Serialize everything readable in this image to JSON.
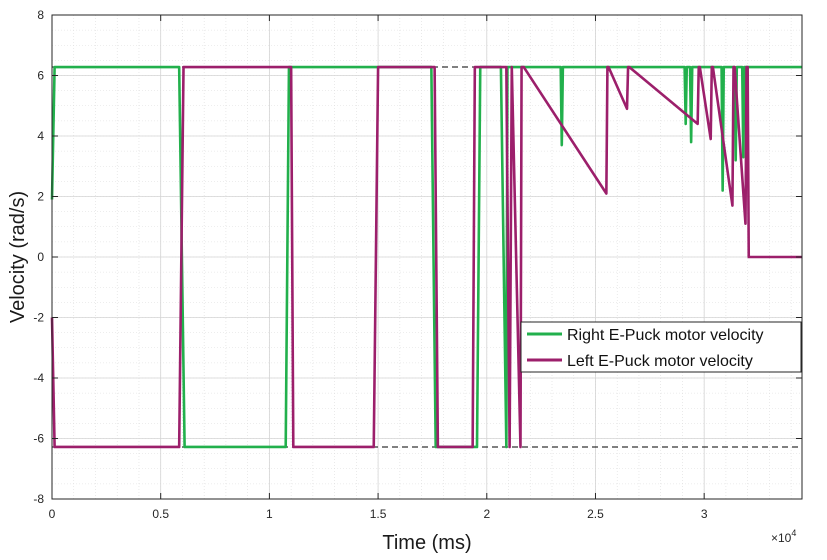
{
  "chart_data": {
    "type": "line",
    "title": "",
    "xlabel": "Time (ms)",
    "ylabel": "Velocity (rad/s)",
    "xlim": [
      0,
      3.45
    ],
    "ylim": [
      -8,
      8
    ],
    "x_exponent_label": "×10",
    "x_exponent_power": "4",
    "x_ticks": [
      0,
      0.5,
      1,
      1.5,
      2,
      2.5,
      3
    ],
    "x_tick_labels": [
      "0",
      "0.5",
      "1",
      "1.5",
      "2",
      "2.5",
      "3"
    ],
    "y_ticks": [
      -8,
      -6,
      -4,
      -2,
      0,
      2,
      4,
      6,
      8
    ],
    "y_tick_labels": [
      "-8",
      "-6",
      "-4",
      "-2",
      "0",
      "2",
      "4",
      "6",
      "8"
    ],
    "grid": true,
    "minor_grid": true,
    "legend_position": "center-right",
    "reference_lines": [
      {
        "name": "upper-limit",
        "y": 6.28,
        "style": "dashed"
      },
      {
        "name": "lower-limit",
        "y": -6.28,
        "style": "dashed"
      }
    ],
    "series": [
      {
        "name": "Right E-Puck motor velocity",
        "color": "#22b04c",
        "x": [
          0,
          0.012,
          0.02,
          0.585,
          0.61,
          0.625,
          1.075,
          1.09,
          1.1,
          1.745,
          1.765,
          1.77,
          1.955,
          1.97,
          1.975,
          2.065,
          2.09,
          2.095,
          2.34,
          2.345,
          2.35,
          2.91,
          2.915,
          2.92,
          2.935,
          2.94,
          2.945,
          3.08,
          3.085,
          3.09,
          3.14,
          3.145,
          3.15,
          3.175,
          3.18,
          3.185,
          3.2,
          3.45
        ],
        "y": [
          1.9,
          6.28,
          6.28,
          6.28,
          -6.28,
          -6.28,
          -6.28,
          6.28,
          6.28,
          6.28,
          -6.28,
          -6.28,
          -6.28,
          6.28,
          6.28,
          6.28,
          -6.28,
          6.28,
          6.28,
          3.7,
          6.28,
          6.28,
          4.4,
          6.28,
          6.28,
          3.8,
          6.28,
          6.28,
          2.2,
          6.28,
          6.28,
          3.2,
          6.28,
          6.28,
          3.3,
          6.28,
          6.28,
          6.28
        ]
      },
      {
        "name": "Left E-Puck motor velocity",
        "color": "#9c1f6b",
        "x": [
          0,
          0.012,
          0.02,
          0.585,
          0.605,
          0.625,
          1.1,
          1.11,
          1.13,
          1.48,
          1.5,
          1.515,
          1.76,
          1.775,
          1.79,
          1.935,
          1.945,
          1.965,
          2.09,
          2.105,
          2.115,
          2.155,
          2.16,
          2.17,
          2.55,
          2.555,
          2.56,
          2.645,
          2.65,
          2.655,
          2.97,
          2.975,
          2.98,
          3.03,
          3.035,
          3.04,
          3.13,
          3.135,
          3.14,
          3.19,
          3.195,
          3.2,
          3.205,
          3.21,
          3.215,
          3.24,
          3.45
        ],
        "y": [
          -2.0,
          -6.28,
          -6.28,
          -6.28,
          6.28,
          6.28,
          6.28,
          -6.28,
          -6.28,
          -6.28,
          6.28,
          6.28,
          6.28,
          -6.28,
          -6.28,
          -6.28,
          6.28,
          6.28,
          6.28,
          -6.28,
          6.28,
          -6.28,
          6.28,
          6.28,
          2.1,
          6.28,
          6.28,
          4.9,
          6.28,
          6.28,
          4.4,
          6.28,
          6.28,
          3.9,
          6.28,
          6.28,
          1.7,
          6.28,
          6.28,
          1.1,
          6.28,
          6.28,
          0,
          0,
          0,
          0,
          0
        ]
      }
    ]
  }
}
